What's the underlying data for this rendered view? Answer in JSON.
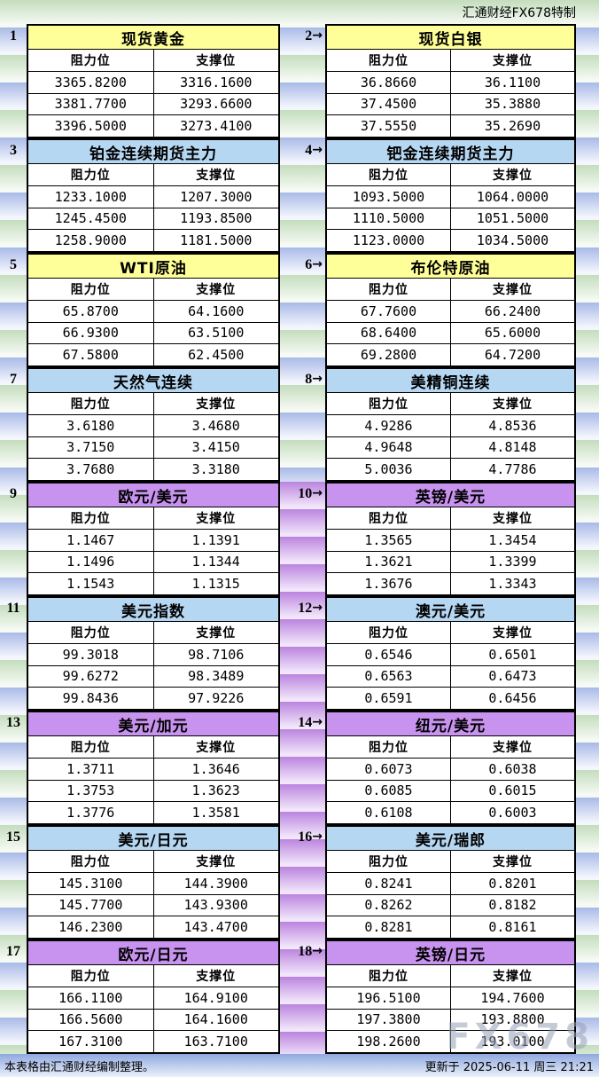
{
  "header": {
    "brand": "汇通财经FX678特制"
  },
  "labels": {
    "resistance": "阻力位",
    "support": "支撑位",
    "arrow": "→"
  },
  "panels": [
    {
      "num": "1",
      "title": "现货黄金",
      "theme": "yellow",
      "rows": [
        [
          "3365.8200",
          "3316.1600"
        ],
        [
          "3381.7700",
          "3293.6600"
        ],
        [
          "3396.5000",
          "3273.4100"
        ]
      ]
    },
    {
      "num": "2",
      "title": "现货白银",
      "theme": "yellow",
      "rows": [
        [
          "36.8660",
          "36.1100"
        ],
        [
          "37.4500",
          "35.3880"
        ],
        [
          "37.5550",
          "35.2690"
        ]
      ]
    },
    {
      "num": "3",
      "title": "铂金连续期货主力",
      "theme": "blue",
      "rows": [
        [
          "1233.1000",
          "1207.3000"
        ],
        [
          "1245.4500",
          "1193.8500"
        ],
        [
          "1258.9000",
          "1181.5000"
        ]
      ]
    },
    {
      "num": "4",
      "title": "钯金连续期货主力",
      "theme": "blue",
      "rows": [
        [
          "1093.5000",
          "1064.0000"
        ],
        [
          "1110.5000",
          "1051.5000"
        ],
        [
          "1123.0000",
          "1034.5000"
        ]
      ]
    },
    {
      "num": "5",
      "title": "WTI原油",
      "theme": "yellow",
      "rows": [
        [
          "65.8700",
          "64.1600"
        ],
        [
          "66.9300",
          "63.5100"
        ],
        [
          "67.5800",
          "62.4500"
        ]
      ]
    },
    {
      "num": "6",
      "title": "布伦特原油",
      "theme": "yellow",
      "rows": [
        [
          "67.7600",
          "66.2400"
        ],
        [
          "68.6400",
          "65.6000"
        ],
        [
          "69.2800",
          "64.7200"
        ]
      ]
    },
    {
      "num": "7",
      "title": "天然气连续",
      "theme": "blue",
      "rows": [
        [
          "3.6180",
          "3.4680"
        ],
        [
          "3.7150",
          "3.4150"
        ],
        [
          "3.7680",
          "3.3180"
        ]
      ]
    },
    {
      "num": "8",
      "title": "美精铜连续",
      "theme": "blue",
      "rows": [
        [
          "4.9286",
          "4.8536"
        ],
        [
          "4.9648",
          "4.8148"
        ],
        [
          "5.0036",
          "4.7786"
        ]
      ]
    },
    {
      "num": "9",
      "title": "欧元/美元",
      "theme": "purple",
      "rows": [
        [
          "1.1467",
          "1.1391"
        ],
        [
          "1.1496",
          "1.1344"
        ],
        [
          "1.1543",
          "1.1315"
        ]
      ]
    },
    {
      "num": "10",
      "title": "英镑/美元",
      "theme": "purple",
      "rows": [
        [
          "1.3565",
          "1.3454"
        ],
        [
          "1.3621",
          "1.3399"
        ],
        [
          "1.3676",
          "1.3343"
        ]
      ]
    },
    {
      "num": "11",
      "title": "美元指数",
      "theme": "blue",
      "rows": [
        [
          "99.3018",
          "98.7106"
        ],
        [
          "99.6272",
          "98.3489"
        ],
        [
          "99.8436",
          "97.9226"
        ]
      ]
    },
    {
      "num": "12",
      "title": "澳元/美元",
      "theme": "blue",
      "rows": [
        [
          "0.6546",
          "0.6501"
        ],
        [
          "0.6563",
          "0.6473"
        ],
        [
          "0.6591",
          "0.6456"
        ]
      ]
    },
    {
      "num": "13",
      "title": "美元/加元",
      "theme": "purple",
      "rows": [
        [
          "1.3711",
          "1.3646"
        ],
        [
          "1.3753",
          "1.3623"
        ],
        [
          "1.3776",
          "1.3581"
        ]
      ]
    },
    {
      "num": "14",
      "title": "纽元/美元",
      "theme": "purple",
      "rows": [
        [
          "0.6073",
          "0.6038"
        ],
        [
          "0.6085",
          "0.6015"
        ],
        [
          "0.6108",
          "0.6003"
        ]
      ]
    },
    {
      "num": "15",
      "title": "美元/日元",
      "theme": "blue",
      "rows": [
        [
          "145.3100",
          "144.3900"
        ],
        [
          "145.7700",
          "143.9300"
        ],
        [
          "146.2300",
          "143.4700"
        ]
      ]
    },
    {
      "num": "16",
      "title": "美元/瑞郎",
      "theme": "blue",
      "rows": [
        [
          "0.8241",
          "0.8201"
        ],
        [
          "0.8262",
          "0.8182"
        ],
        [
          "0.8281",
          "0.8161"
        ]
      ]
    },
    {
      "num": "17",
      "title": "欧元/日元",
      "theme": "purple",
      "rows": [
        [
          "166.1100",
          "164.9100"
        ],
        [
          "166.5600",
          "164.1600"
        ],
        [
          "167.3100",
          "163.7100"
        ]
      ]
    },
    {
      "num": "18",
      "title": "英镑/日元",
      "theme": "purple",
      "rows": [
        [
          "196.5100",
          "194.7600"
        ],
        [
          "197.3800",
          "193.8800"
        ],
        [
          "198.2600",
          "193.0100"
        ]
      ]
    }
  ],
  "footer": {
    "note": "本表格由汇通财经编制整理。",
    "updated": "更新于 2025-06-11 周三 21:21"
  },
  "watermark": "FX678",
  "colors": {
    "title_yellow": "#ffff99",
    "title_blue": "#b6d7f2",
    "title_purple": "#c893ef",
    "stripe_green": "#c4ddbd",
    "stripe_blue": "#a9bae7",
    "stripe_purple": "#bb84df"
  }
}
